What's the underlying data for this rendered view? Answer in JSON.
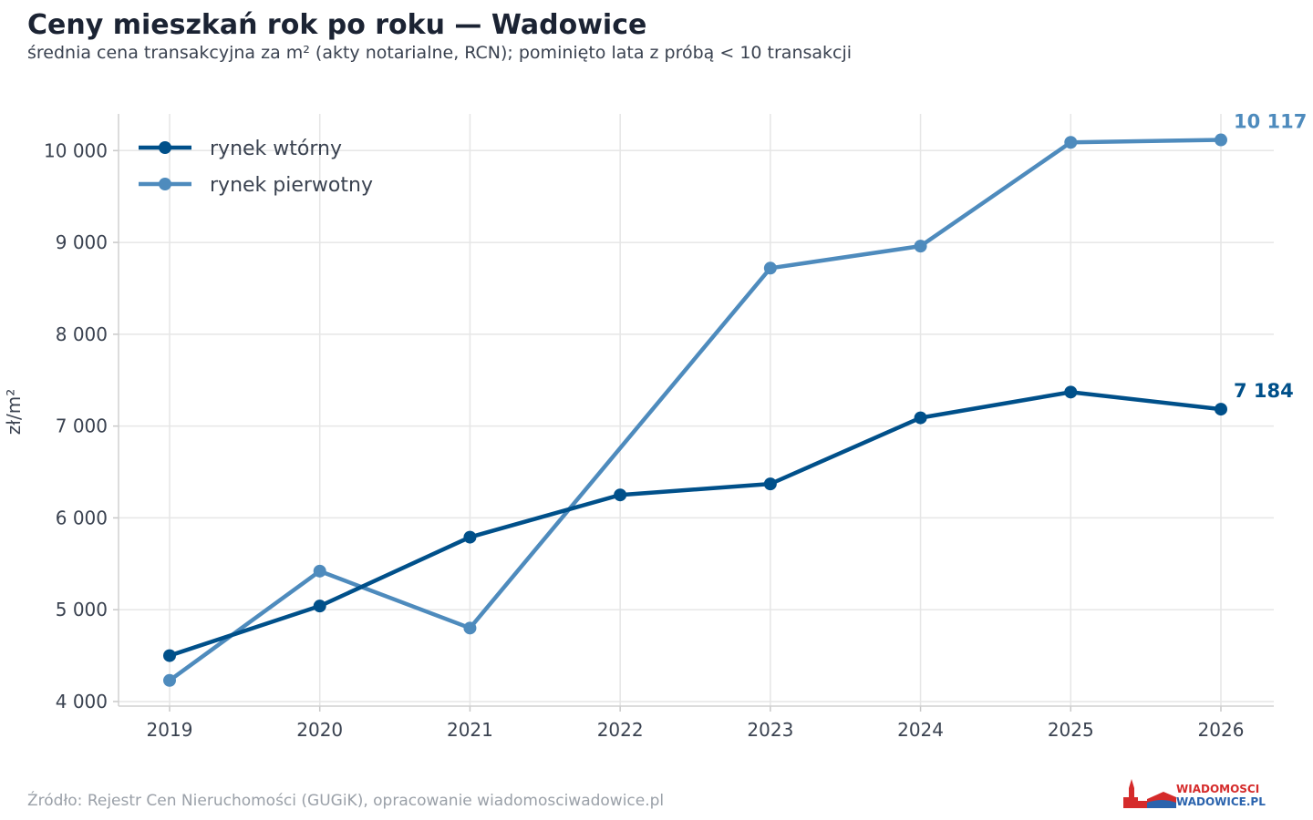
{
  "header": {
    "title": "Ceny mieszkań rok po roku — Wadowice",
    "subtitle": "średnia cena transakcyjna za m² (akty notarialne, RCN); pominięto lata z próbą < 10 transakcji"
  },
  "footer": {
    "source": "Źródło: Rejestr Cen Nieruchomości (GUGiK), opracowanie wiadomosciwadowice.pl"
  },
  "logo": {
    "line1": "WIADOMOSCI",
    "line2": "WADOWICE.PL",
    "colors": {
      "red": "#d52b2b",
      "blue": "#2a63ad"
    }
  },
  "chart_data": {
    "type": "line",
    "title": "Ceny mieszkań rok po roku — Wadowice",
    "ylabel": "zł/m²",
    "xlabel": "",
    "x": [
      2019,
      2020,
      2021,
      2022,
      2023,
      2024,
      2025,
      2026
    ],
    "x_tick_labels": [
      "2019",
      "2020",
      "2021",
      "2022",
      "2023",
      "2024",
      "2025",
      "2026"
    ],
    "ylim": [
      3950,
      10400
    ],
    "y_ticks": [
      4000,
      5000,
      6000,
      7000,
      8000,
      9000,
      10000
    ],
    "y_tick_labels": [
      "4 000",
      "5 000",
      "6 000",
      "7 000",
      "8 000",
      "9 000",
      "10 000"
    ],
    "grid": true,
    "legend_position": "top-left",
    "series": [
      {
        "name": "rynek wtórny",
        "color": "#00508a",
        "values": [
          4500,
          5040,
          5790,
          6250,
          6370,
          7090,
          7370,
          7184
        ],
        "end_label": "7 184"
      },
      {
        "name": "rynek pierwotny",
        "color": "#4e8bbd",
        "values": [
          4230,
          5420,
          4800,
          null,
          8720,
          8960,
          10090,
          10117
        ],
        "end_label": "10 117"
      }
    ]
  }
}
